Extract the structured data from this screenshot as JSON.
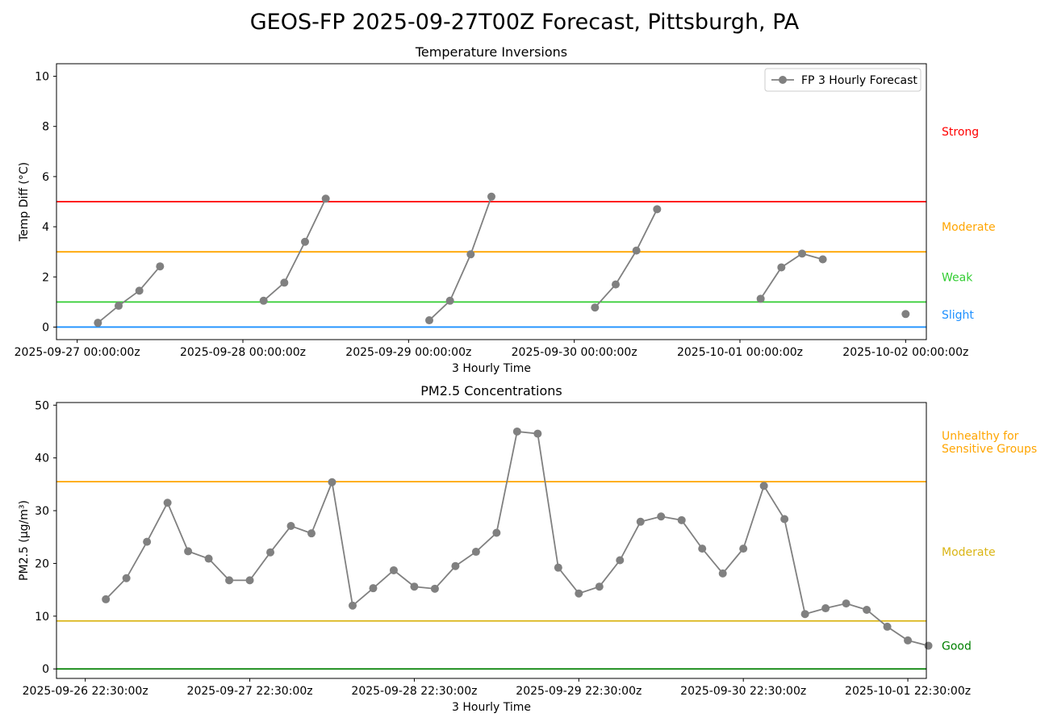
{
  "figure_title": "GEOS-FP 2025-09-27T00Z Forecast, Pittsburgh, PA",
  "colors": {
    "series": "#808080",
    "strong": "#ff0000",
    "moderate_inv": "#ffa500",
    "weak": "#32cd32",
    "slight": "#1e90ff",
    "usg": "#ffa500",
    "moderate_pm": "#dab515",
    "good": "#008000"
  },
  "chart_data": [
    {
      "type": "line",
      "title": "Temperature Inversions",
      "xlabel": "3 Hourly Time",
      "ylabel": "Temp Diff (°C)",
      "ylim": [
        -0.5,
        10.5
      ],
      "xlim_hours": [
        -3,
        123
      ],
      "yticks": [
        0,
        2,
        4,
        6,
        8,
        10
      ],
      "xticks": [
        {
          "label": "2025-09-27 00:00:00z",
          "hour": 0
        },
        {
          "label": "2025-09-28 00:00:00z",
          "hour": 24
        },
        {
          "label": "2025-09-29 00:00:00z",
          "hour": 48
        },
        {
          "label": "2025-09-30 00:00:00z",
          "hour": 72
        },
        {
          "label": "2025-10-01 00:00:00z",
          "hour": 96
        },
        {
          "label": "2025-10-02 00:00:00z",
          "hour": 120
        }
      ],
      "legend": {
        "label": "FP 3 Hourly Forecast",
        "position": "upper right"
      },
      "series": [
        {
          "name": "FP 3 Hourly Forecast",
          "segments": [
            [
              [
                3,
                0.17
              ],
              [
                6,
                0.85
              ],
              [
                9,
                1.45
              ],
              [
                12,
                2.42
              ]
            ],
            [
              [
                27,
                1.05
              ],
              [
                30,
                1.77
              ],
              [
                33,
                3.4
              ],
              [
                36,
                5.12
              ]
            ],
            [
              [
                51,
                0.27
              ],
              [
                54,
                1.05
              ],
              [
                57,
                2.9
              ],
              [
                60,
                5.2
              ]
            ],
            [
              [
                75,
                0.78
              ],
              [
                78,
                1.7
              ],
              [
                81,
                3.05
              ],
              [
                84,
                4.7
              ]
            ],
            [
              [
                99,
                1.13
              ],
              [
                102,
                2.38
              ],
              [
                105,
                2.93
              ],
              [
                108,
                2.7
              ]
            ],
            [
              [
                120,
                0.52
              ]
            ]
          ]
        }
      ],
      "reference_lines": [
        {
          "value": 5,
          "label": "Strong",
          "color_key": "strong",
          "label_value": 7.8
        },
        {
          "value": 3,
          "label": "Moderate",
          "color_key": "moderate_inv",
          "label_value": 4.0
        },
        {
          "value": 1,
          "label": "Weak",
          "color_key": "weak",
          "label_value": 2.0
        },
        {
          "value": 0,
          "label": "Slight",
          "color_key": "slight",
          "label_value": 0.5
        }
      ]
    },
    {
      "type": "line",
      "title": "PM2.5 Concentrations",
      "xlabel": "3 Hourly Time",
      "ylabel": "PM2.5 (µg/m³)",
      "ylim": [
        -1.8,
        50.5
      ],
      "xlim_hours": [
        -4.2,
        122.7
      ],
      "yticks": [
        0,
        10,
        20,
        30,
        40,
        50
      ],
      "xticks": [
        {
          "label": "2025-09-26 22:30:00z",
          "hour": 0
        },
        {
          "label": "2025-09-27 22:30:00z",
          "hour": 24
        },
        {
          "label": "2025-09-28 22:30:00z",
          "hour": 48
        },
        {
          "label": "2025-09-29 22:30:00z",
          "hour": 72
        },
        {
          "label": "2025-09-30 22:30:00z",
          "hour": 96
        },
        {
          "label": "2025-10-01 22:30:00z",
          "hour": 120
        }
      ],
      "series": [
        {
          "name": "PM2.5",
          "points": [
            [
              3,
              13.2
            ],
            [
              6,
              17.2
            ],
            [
              9,
              24.1
            ],
            [
              12,
              31.5
            ],
            [
              15,
              22.3
            ],
            [
              18,
              20.9
            ],
            [
              21,
              16.8
            ],
            [
              24,
              16.8
            ],
            [
              27,
              22.1
            ],
            [
              30,
              27.1
            ],
            [
              33,
              25.7
            ],
            [
              36,
              35.4
            ],
            [
              39,
              12.0
            ],
            [
              42,
              15.3
            ],
            [
              45,
              18.7
            ],
            [
              48,
              15.6
            ],
            [
              51,
              15.2
            ],
            [
              54,
              19.5
            ],
            [
              57,
              22.2
            ],
            [
              60,
              25.8
            ],
            [
              63,
              45.0
            ],
            [
              66,
              44.6
            ],
            [
              69,
              19.2
            ],
            [
              72,
              14.3
            ],
            [
              75,
              15.6
            ],
            [
              78,
              20.6
            ],
            [
              81,
              27.9
            ],
            [
              84,
              28.9
            ],
            [
              87,
              28.2
            ],
            [
              90,
              22.8
            ],
            [
              93,
              18.1
            ],
            [
              96,
              22.8
            ],
            [
              99,
              34.7
            ],
            [
              102,
              28.4
            ],
            [
              105,
              10.4
            ],
            [
              108,
              11.5
            ],
            [
              111,
              12.4
            ],
            [
              114,
              11.2
            ],
            [
              117,
              8.0
            ],
            [
              120,
              5.4
            ],
            [
              123,
              4.4
            ]
          ]
        }
      ],
      "reference_lines": [
        {
          "value": 35.5,
          "label": "Unhealthy for\nSensitive Groups",
          "color_key": "usg",
          "label_value": 43.0
        },
        {
          "value": 9.1,
          "label": "Moderate",
          "color_key": "moderate_pm",
          "label_value": 22.2
        },
        {
          "value": 0,
          "label": "Good",
          "color_key": "good",
          "label_value": 4.4
        }
      ]
    }
  ]
}
